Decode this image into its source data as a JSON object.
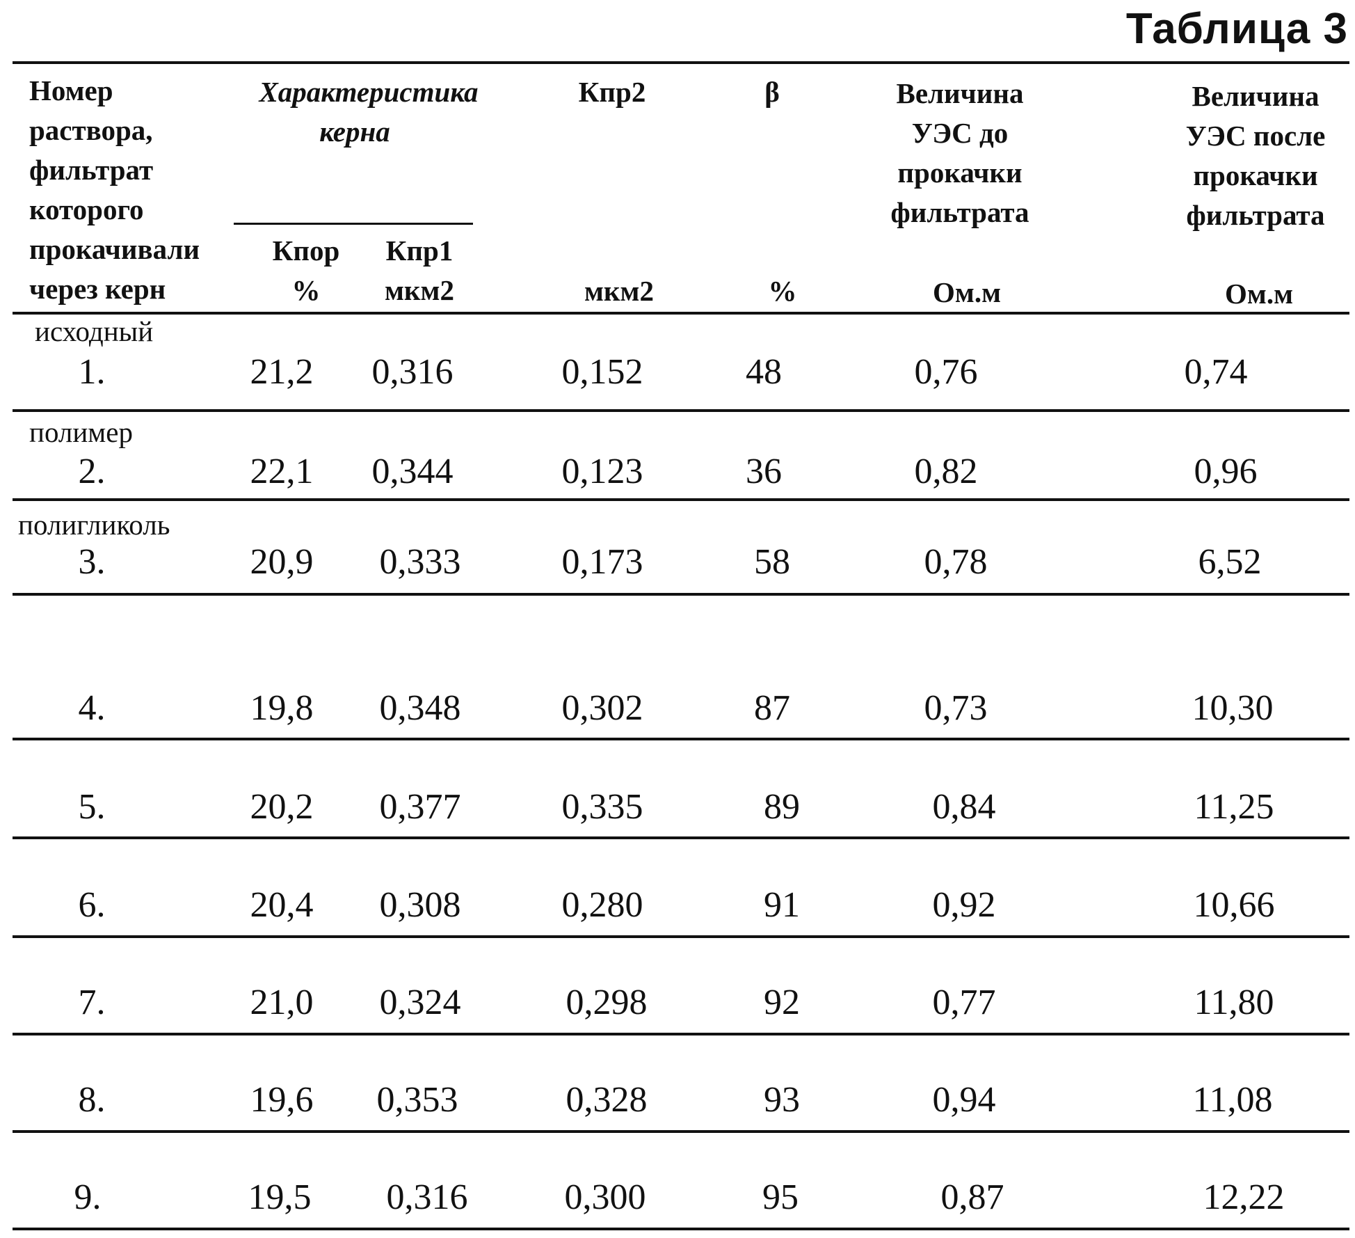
{
  "title": "Таблица 3",
  "header": {
    "col1_lines": [
      "Номер",
      "раствора,",
      "фильтрат",
      "которого",
      "прокачивали",
      "через керн"
    ],
    "core_group_lines": [
      "Характеристика",
      "керна"
    ],
    "kpor_lines": [
      "Кпор",
      "%"
    ],
    "kpr1_lines": [
      "Кпр1",
      "мкм2"
    ],
    "kpr2": "Кпр2",
    "kpr2_unit": "мкм2",
    "beta": "β",
    "beta_unit": "%",
    "ues_before_lines": [
      "Величина",
      "УЭС до",
      "прокачки",
      "фильтрата"
    ],
    "ues_before_unit": "Ом.м",
    "ues_after_lines": [
      "Величина",
      "УЭС после",
      "прокачки",
      "фильтрата"
    ],
    "ues_after_unit": "Ом.м"
  },
  "rows": [
    {
      "label": "исходный",
      "num": "1.",
      "kpor": "21,2",
      "kpr1": "0,316",
      "kpr2": "0,152",
      "beta": "48",
      "ues_before": "0,76",
      "ues_after": "0,74"
    },
    {
      "label": "полимер",
      "num": "2.",
      "kpor": "22,1",
      "kpr1": "0,344",
      "kpr2": "0,123",
      "beta": "36",
      "ues_before": "0,82",
      "ues_after": "0,96"
    },
    {
      "label": "полигликоль",
      "num": "3.",
      "kpor": "20,9",
      "kpr1": "0,333",
      "kpr2": "0,173",
      "beta": "58",
      "ues_before": "0,78",
      "ues_after": "6,52"
    },
    {
      "label": "",
      "num": "4.",
      "kpor": "19,8",
      "kpr1": "0,348",
      "kpr2": "0,302",
      "beta": "87",
      "ues_before": "0,73",
      "ues_after": "10,30"
    },
    {
      "label": "",
      "num": "5.",
      "kpor": "20,2",
      "kpr1": "0,377",
      "kpr2": "0,335",
      "beta": "89",
      "ues_before": "0,84",
      "ues_after": "11,25"
    },
    {
      "label": "",
      "num": "6.",
      "kpor": "20,4",
      "kpr1": "0,308",
      "kpr2": "0,280",
      "beta": "91",
      "ues_before": "0,92",
      "ues_after": "10,66"
    },
    {
      "label": "",
      "num": "7.",
      "kpor": "21,0",
      "kpr1": "0,324",
      "kpr2": "0,298",
      "beta": "92",
      "ues_before": "0,77",
      "ues_after": "11,80"
    },
    {
      "label": "",
      "num": "8.",
      "kpor": "19,6",
      "kpr1": "0,353",
      "kpr2": "0,328",
      "beta": "93",
      "ues_before": "0,94",
      "ues_after": "11,08"
    },
    {
      "label": "",
      "num": "9.",
      "kpor": "19,5",
      "kpr1": "0,316",
      "kpr2": "0,300",
      "beta": "95",
      "ues_before": "0,87",
      "ues_after": "12,22"
    }
  ]
}
